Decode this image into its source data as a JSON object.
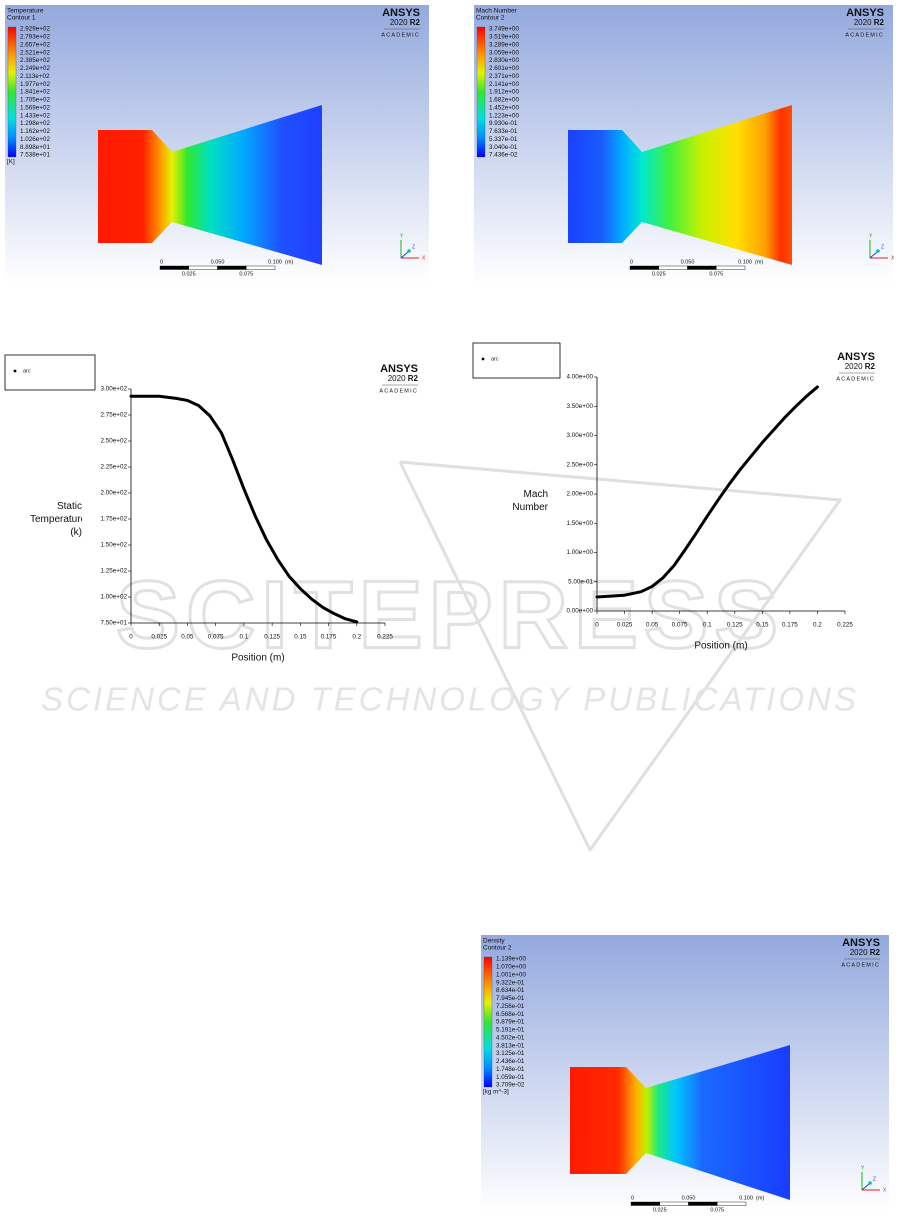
{
  "contours": [
    {
      "title": "Temperature",
      "subtitle": "Contour 1",
      "levels": [
        "2.929e+02",
        "2.793e+02",
        "2.657e+02",
        "2.521e+02",
        "2.385e+02",
        "2.249e+02",
        "2.113e+02",
        "1.977e+02",
        "1.841e+02",
        "1.705e+02",
        "1.569e+02",
        "1.433e+02",
        "1.298e+02",
        "1.162e+02",
        "1.026e+02",
        "8.898e+01",
        "7.538e+01"
      ],
      "unit": "[K]"
    },
    {
      "title": "Mach Number",
      "subtitle": "Contour 2",
      "levels": [
        "3.749e+00",
        "3.519e+00",
        "3.289e+00",
        "3.059e+00",
        "2.830e+00",
        "2.601e+00",
        "2.371e+00",
        "2.141e+00",
        "1.912e+00",
        "1.682e+00",
        "1.452e+00",
        "1.223e+00",
        "9.930e-01",
        "7.633e-01",
        "5.337e-01",
        "3.040e-01",
        "7.436e-02"
      ]
    },
    {
      "title": "Density",
      "subtitle": "Contour 2",
      "levels": [
        "1.139e+00",
        "1.070e+00",
        "1.001e+00",
        "9.322e-01",
        "8.634e-01",
        "7.945e-01",
        "7.256e-01",
        "6.568e-01",
        "5.879e-01",
        "5.191e-01",
        "4.502e-01",
        "3.813e-01",
        "3.125e-01",
        "2.436e-01",
        "1.748e-01",
        "1.059e-01",
        "3.709e-02"
      ],
      "unit": "[kg m^-3]"
    }
  ],
  "branding": {
    "name": "ANSYS",
    "version": "2020",
    "release": "R2",
    "edition": "ACADEMIC"
  },
  "scale_bar": {
    "top": [
      "0",
      "0.050",
      "0.100"
    ],
    "unit": "(m)",
    "bottom": [
      "0.025",
      "0.075"
    ]
  },
  "triad": {
    "x": "X",
    "y": "Y",
    "z": "Z"
  },
  "chart_data": [
    {
      "type": "line",
      "y_label": "Static Temperature (k)",
      "x_label": "Position (m)",
      "x": [
        0,
        0.025,
        0.04,
        0.05,
        0.06,
        0.07,
        0.08,
        0.09,
        0.1,
        0.11,
        0.12,
        0.13,
        0.14,
        0.15,
        0.16,
        0.17,
        0.18,
        0.19,
        0.2
      ],
      "series": [
        {
          "name": "arc",
          "color": "#000000",
          "values": [
            293,
            293,
            291,
            289,
            284,
            274,
            258,
            232,
            204,
            178,
            155,
            136,
            120,
            108,
            98,
            90,
            84,
            79,
            76
          ]
        }
      ],
      "xlim": [
        0,
        0.225
      ],
      "xticks": [
        0,
        0.025,
        0.05,
        0.075,
        0.1,
        0.125,
        0.15,
        0.175,
        0.2,
        0.225
      ],
      "ylim": [
        75,
        300
      ],
      "yticks": [
        {
          "value": 75,
          "label": "7.50e+01"
        },
        {
          "value": 100,
          "label": "1.00e+02"
        },
        {
          "value": 125,
          "label": "1.25e+02"
        },
        {
          "value": 150,
          "label": "1.50e+02"
        },
        {
          "value": 175,
          "label": "1.75e+02"
        },
        {
          "value": 200,
          "label": "2.00e+02"
        },
        {
          "value": 225,
          "label": "2.25e+02"
        },
        {
          "value": 250,
          "label": "2.50e+02"
        },
        {
          "value": 275,
          "label": "2.75e+02"
        },
        {
          "value": 300,
          "label": "3.00e+02"
        }
      ]
    },
    {
      "type": "line",
      "y_label": "Mach Number",
      "x_label": "Position (m)",
      "x": [
        0,
        0.025,
        0.04,
        0.05,
        0.06,
        0.07,
        0.08,
        0.09,
        0.1,
        0.11,
        0.12,
        0.13,
        0.14,
        0.15,
        0.16,
        0.17,
        0.18,
        0.19,
        0.2
      ],
      "series": [
        {
          "name": "arc",
          "color": "#000000",
          "values": [
            0.24,
            0.27,
            0.33,
            0.42,
            0.57,
            0.78,
            1.05,
            1.33,
            1.62,
            1.9,
            2.17,
            2.42,
            2.65,
            2.88,
            3.09,
            3.3,
            3.49,
            3.67,
            3.83
          ]
        }
      ],
      "xlim": [
        0,
        0.225
      ],
      "xticks": [
        0,
        0.025,
        0.05,
        0.075,
        0.1,
        0.125,
        0.15,
        0.175,
        0.2,
        0.225
      ],
      "ylim": [
        0,
        4
      ],
      "yticks": [
        {
          "value": 0,
          "label": "0.00e+00"
        },
        {
          "value": 0.5,
          "label": "5.00e-01"
        },
        {
          "value": 1,
          "label": "1.00e+00"
        },
        {
          "value": 1.5,
          "label": "1.50e+00"
        },
        {
          "value": 2,
          "label": "2.00e+00"
        },
        {
          "value": 2.5,
          "label": "2.50e+00"
        },
        {
          "value": 3,
          "label": "3.00e+00"
        },
        {
          "value": 3.5,
          "label": "3.50e+00"
        },
        {
          "value": 4,
          "label": "4.00e+00"
        }
      ]
    }
  ],
  "watermark": {
    "logo": "SCITEPRESS",
    "tagline": "SCIENCE AND TECHNOLOGY PUBLICATIONS"
  }
}
